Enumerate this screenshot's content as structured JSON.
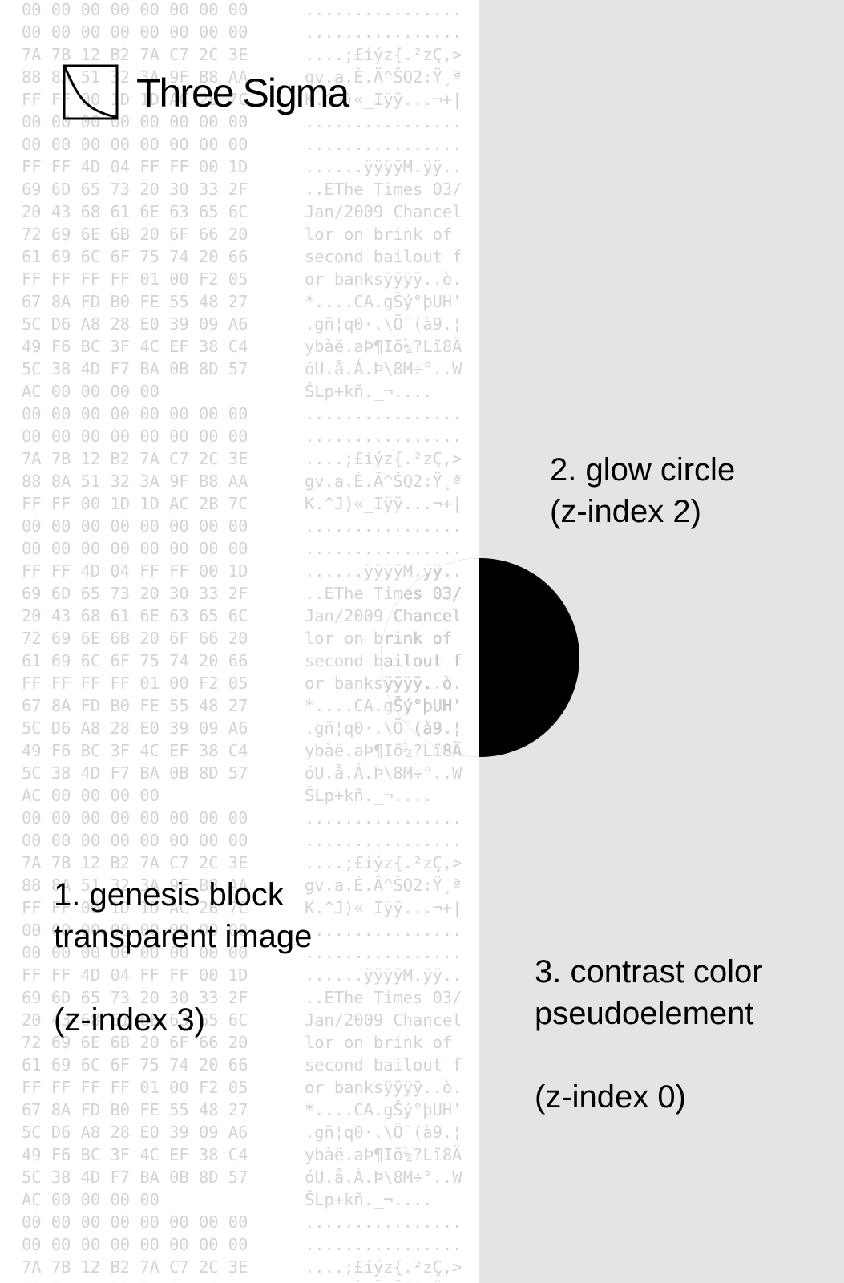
{
  "logo": {
    "text": "Three Sigma",
    "icon": "three-sigma-curve-icon"
  },
  "hex_dump": {
    "bytes_rows": [
      "00 00 00 00 00 00 00 00",
      "00 00 00 00 00 00 00 00",
      "7A 7B 12 B2 7A C7 2C 3E",
      "88 8A 51 32 3A 9F B8 AA",
      "FF FF 00 1D 1D AC 2B 7C",
      "00 00 00 00 00 00 00 00",
      "00 00 00 00 00 00 00 00",
      "FF FF 4D 04 FF FF 00 1D",
      "69 6D 65 73 20 30 33 2F",
      "20 43 68 61 6E 63 65 6C",
      "72 69 6E 6B 20 6F 66 20",
      "61 69 6C 6F 75 74 20 66",
      "FF FF FF FF 01 00 F2 05",
      "67 8A FD B0 FE 55 48 27",
      "5C D6 A8 28 E0 39 09 A6",
      "49 F6 BC 3F 4C EF 38 C4",
      "5C 38 4D F7 BA 0B 8D 57",
      "AC 00 00 00 00"
    ],
    "ascii_rows": [
      "................",
      "................",
      "....;£íýz{.²zÇ,>",
      "gv.a.È.Ã^ŠQ2:Ÿ¸ª",
      "K.^J)«_Iÿÿ...¬+|",
      "................",
      "................",
      "......ÿÿÿÿM.ÿÿ..",
      "..EThe Times 03/",
      "Jan/2009 Chancel",
      "lor on brink of ",
      "second bailout f",
      "or banksÿÿÿÿ..ò.",
      "*....CA.gŠý°þUH'",
      ".gñ¦q0·.\\Ö¨(à9.¦",
      "ybàë.aÞ¶Iö¼?Lï8Ä",
      "óU.å.Á.Þ\\8M÷°..W",
      "ŠLp+kñ._¬...."
    ]
  },
  "labels": {
    "genesis": {
      "line1": "1. genesis block",
      "line2": "transparent image",
      "zindex": "(z-index 3)"
    },
    "glow": {
      "line1": "2. glow circle",
      "zindex": "(z-index 2)"
    },
    "contrast": {
      "line1": "3. contrast color",
      "line2": "pseudoelement",
      "zindex": "(z-index 0)"
    }
  },
  "colors": {
    "page_background": "#ffffff",
    "contrast_panel": "#e4e4e4",
    "glow_circle": "#000000",
    "hex_text": "#d3d3d3",
    "label_text": "#000000"
  }
}
